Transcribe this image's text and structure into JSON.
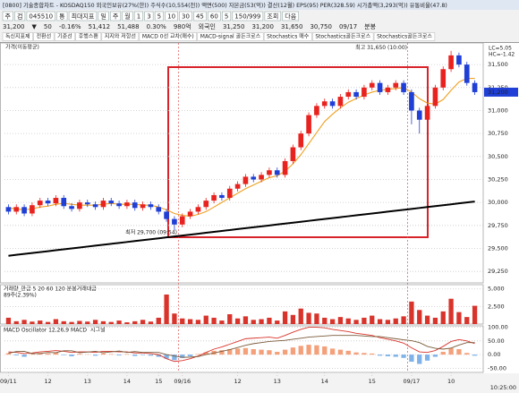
{
  "toolbar": {
    "title_bar": "[0800] 기술종합차트 - KOSDAQ150 외국인보유(27%(한)) 주식수(10,554(천)) 액면(500) 자본금(53(억)) 결산(12월) EPS(95) PER(328.59) 시가총액(3,293(억)) 유통비율(47.8)",
    "controls": [
      "주",
      "검",
      "045510",
      "통",
      "최대지표",
      "일",
      "주",
      "월",
      "1",
      "3",
      "5",
      "10",
      "30",
      "45",
      "60",
      "5",
      "150/999",
      "조회",
      "다음"
    ],
    "quote": [
      "31,200",
      "▼",
      "50",
      "-0.16%",
      "51,412",
      "51,488",
      "0.30%",
      "980억",
      "외국인",
      "31,250",
      "31,200",
      "31,650",
      "30,750",
      "09/17",
      "분봉"
    ],
    "tabs": [
      "독신지표제",
      "전환선",
      "기준선",
      "후행스팬",
      "지지와 저항선",
      "MACD 0선 교차(매수)",
      "MACD-signal 골든크로스",
      "Stochastics 매수",
      "Stochastics골든크로스",
      "Stochastics골든크로스"
    ],
    "legend": "가격(이동평균)"
  },
  "chart_data": [
    {
      "type": "candlestick",
      "categories": [
        "09/11",
        null,
        null,
        null,
        null,
        "12",
        null,
        null,
        null,
        null,
        "13",
        null,
        null,
        null,
        null,
        "14",
        null,
        null,
        null,
        "15",
        null,
        null,
        "09/16",
        null,
        null,
        null,
        null,
        null,
        null,
        "12",
        null,
        null,
        null,
        null,
        "13",
        null,
        null,
        null,
        null,
        null,
        "14",
        null,
        null,
        null,
        null,
        null,
        "15",
        null,
        null,
        null,
        null,
        "09/17",
        null,
        null,
        null,
        null,
        "10",
        null,
        null,
        null
      ],
      "open": [
        29950,
        29900,
        29950,
        29880,
        29970,
        30020,
        29990,
        30050,
        29960,
        29930,
        30000,
        29980,
        29950,
        30020,
        29990,
        29960,
        30000,
        29940,
        29980,
        29950,
        29900,
        29820,
        29760,
        29850,
        29900,
        29950,
        30020,
        30080,
        30050,
        30150,
        30200,
        30280,
        30250,
        30300,
        30350,
        30300,
        30450,
        30600,
        30750,
        30950,
        31050,
        31100,
        31050,
        31150,
        31200,
        31150,
        31250,
        31300,
        31200,
        31250,
        31300,
        31200,
        31000,
        30900,
        31050,
        31250,
        31450,
        31600,
        31500,
        31300
      ],
      "high": [
        29980,
        29980,
        29980,
        30000,
        30050,
        30050,
        30080,
        30080,
        29990,
        30030,
        30030,
        30010,
        30050,
        30050,
        30020,
        30030,
        30030,
        30010,
        30010,
        29980,
        29930,
        29850,
        29880,
        29930,
        29980,
        30050,
        30110,
        30110,
        30180,
        30230,
        30310,
        30310,
        30330,
        30380,
        30380,
        30480,
        30630,
        30780,
        30980,
        31080,
        31130,
        31130,
        31180,
        31230,
        31230,
        31280,
        31330,
        31330,
        31280,
        31330,
        31330,
        31230,
        31030,
        31080,
        31280,
        31480,
        31650,
        31630,
        31530,
        31330
      ],
      "low": [
        29870,
        29870,
        29850,
        29850,
        29940,
        29960,
        29960,
        29930,
        29900,
        29900,
        29950,
        29920,
        29920,
        29960,
        29930,
        29930,
        29910,
        29910,
        29920,
        29870,
        29790,
        29700,
        29730,
        29820,
        29870,
        29920,
        29990,
        30020,
        30020,
        30120,
        30170,
        30220,
        30220,
        30270,
        30270,
        30270,
        30420,
        30570,
        30720,
        30920,
        31020,
        31020,
        31020,
        31120,
        31120,
        31120,
        31220,
        31170,
        31170,
        31220,
        31170,
        30850,
        30750,
        30870,
        31020,
        31220,
        31420,
        31470,
        31270,
        31170
      ],
      "close": [
        29900,
        29950,
        29880,
        29970,
        30020,
        29990,
        30050,
        29960,
        29930,
        30000,
        29980,
        29950,
        30020,
        29990,
        29960,
        30000,
        29940,
        29980,
        29950,
        29900,
        29820,
        29760,
        29850,
        29900,
        29950,
        30020,
        30080,
        30050,
        30150,
        30200,
        30280,
        30250,
        30300,
        30350,
        30300,
        30450,
        30600,
        30750,
        30950,
        31050,
        31100,
        31050,
        31150,
        31200,
        31150,
        31250,
        31300,
        31200,
        31250,
        31300,
        31200,
        31000,
        30900,
        31050,
        31250,
        31450,
        31600,
        31500,
        31300,
        31200
      ],
      "up_color": "#e8231f",
      "down_color": "#1f3fd6",
      "series": [
        {
          "color": "#f0a020",
          "values": [
            29940,
            29930,
            29920,
            29930,
            29950,
            29960,
            29980,
            29990,
            29980,
            29970,
            29970,
            29970,
            29980,
            29990,
            29980,
            29980,
            29980,
            29970,
            29970,
            29950,
            29920,
            29880,
            29860,
            29850,
            29870,
            29900,
            29950,
            30000,
            30050,
            30100,
            30150,
            30190,
            30230,
            30270,
            30290,
            30340,
            30420,
            30520,
            30640,
            30760,
            30880,
            30960,
            31030,
            31090,
            31130,
            31170,
            31200,
            31220,
            31230,
            31240,
            31250,
            31200,
            31130,
            31080,
            31070,
            31120,
            31220,
            31310,
            31350,
            31350
          ]
        },
        {
          "color": "#000000",
          "values": [
            29420,
            29430,
            29440,
            29450,
            29460,
            29470,
            29480,
            29490,
            29500,
            29510,
            29520,
            29530,
            29540,
            29550,
            29560,
            29570,
            29580,
            29590,
            29600,
            29610,
            29620,
            29630,
            29640,
            29650,
            29660,
            29670,
            29680,
            29690,
            29700,
            29710,
            29720,
            29730,
            29740,
            29750,
            29760,
            29770,
            29780,
            29790,
            29800,
            29810,
            29820,
            29830,
            29840,
            29850,
            29860,
            29870,
            29880,
            29890,
            29900,
            29910,
            29920,
            29930,
            29940,
            29950,
            29960,
            29970,
            29980,
            29990,
            30000,
            30010
          ]
        }
      ],
      "ylim": [
        29125,
        31735
      ],
      "yticks": [
        {
          "value": 29250,
          "label": "29,250"
        },
        {
          "value": 29500,
          "label": "29,500"
        },
        {
          "value": 29750,
          "label": "29,750"
        },
        {
          "value": 30000,
          "label": "30,000"
        },
        {
          "value": 30250,
          "label": "30,250"
        },
        {
          "value": 30500,
          "label": "30,500"
        },
        {
          "value": 30750,
          "label": "30,750"
        },
        {
          "value": 31000,
          "label": "31,000"
        },
        {
          "value": 31250,
          "label": "31,250"
        },
        {
          "value": 31500,
          "label": "31,500"
        }
      ],
      "grid": true,
      "annotations": [
        {
          "text": "최고 31,650 (10:00)",
          "value": 31650
        },
        {
          "text": "최저 29,700 (09:54)",
          "value": 29700
        }
      ],
      "current_price": {
        "value": 31200,
        "label": "31,200"
      },
      "notes": [
        "LC=5.05",
        "HC=-1.42"
      ],
      "last_time": "10:25:00"
    },
    {
      "type": "bar",
      "title": "거래량_만금 5 20 60 120 분봉거래대금",
      "subtitle": "89주(2.39%)",
      "color": "#d9342b",
      "values": [
        900,
        400,
        600,
        350,
        500,
        300,
        700,
        400,
        300,
        450,
        350,
        600,
        400,
        300,
        500,
        250,
        400,
        600,
        350,
        900,
        4200,
        1500,
        800,
        700,
        600,
        1200,
        900,
        500,
        1400,
        800,
        1100,
        600,
        700,
        900,
        500,
        1800,
        1300,
        2200,
        1600,
        1500,
        900,
        700,
        1000,
        800,
        600,
        900,
        1200,
        700,
        600,
        800,
        1100,
        3200,
        2000,
        1200,
        900,
        1800,
        3600,
        1700,
        1000,
        2600
      ],
      "ylim": [
        0,
        5600
      ],
      "yticks": [
        {
          "value": 2500,
          "label": "2,500"
        },
        {
          "value": 5000,
          "label": "5,000"
        }
      ]
    },
    {
      "type": "macd",
      "title": "MACD Oscillator 12,26,9",
      "pos_color": "#f4a07a",
      "neg_color": "#7fb2e8",
      "values": [
        5,
        -3,
        -8,
        2,
        6,
        4,
        8,
        -2,
        -6,
        3,
        1,
        -4,
        5,
        2,
        -3,
        2,
        -5,
        -2,
        -4,
        -8,
        -15,
        -20,
        -12,
        -6,
        2,
        8,
        14,
        16,
        20,
        22,
        24,
        20,
        18,
        16,
        10,
        18,
        26,
        32,
        36,
        34,
        30,
        22,
        18,
        14,
        8,
        6,
        4,
        -4,
        -6,
        -8,
        -12,
        -26,
        -34,
        -22,
        -8,
        10,
        24,
        20,
        6,
        -4
      ],
      "series": [
        {
          "name": "MACD",
          "color": "#d9342b",
          "values": [
            10,
            8,
            4,
            6,
            10,
            12,
            15,
            12,
            8,
            10,
            10,
            8,
            12,
            12,
            10,
            10,
            6,
            6,
            4,
            0,
            -15,
            -25,
            -22,
            -15,
            -5,
            8,
            20,
            28,
            38,
            48,
            58,
            60,
            62,
            64,
            60,
            70,
            82,
            92,
            100,
            100,
            98,
            92,
            88,
            84,
            78,
            74,
            70,
            62,
            56,
            50,
            42,
            25,
            10,
            8,
            15,
            30,
            48,
            55,
            50,
            40
          ]
        },
        {
          "name": "시그널",
          "color": "#7a5a3a",
          "values": [
            5,
            11,
            12,
            4,
            4,
            8,
            7,
            14,
            14,
            7,
            9,
            12,
            7,
            10,
            13,
            8,
            11,
            8,
            8,
            8,
            0,
            -5,
            -10,
            -9,
            -7,
            0,
            6,
            12,
            18,
            26,
            34,
            40,
            44,
            48,
            50,
            52,
            56,
            60,
            64,
            66,
            68,
            70,
            70,
            70,
            70,
            68,
            66,
            66,
            62,
            58,
            54,
            51,
            44,
            30,
            23,
            20,
            24,
            35,
            44,
            44
          ]
        }
      ],
      "ylim": [
        -65,
        105
      ],
      "yticks": [
        {
          "value": -50,
          "label": "-50.00"
        },
        {
          "value": 0,
          "label": "0.00"
        },
        {
          "value": 50,
          "label": "50.00"
        },
        {
          "value": 100,
          "label": "100.00"
        }
      ]
    }
  ]
}
